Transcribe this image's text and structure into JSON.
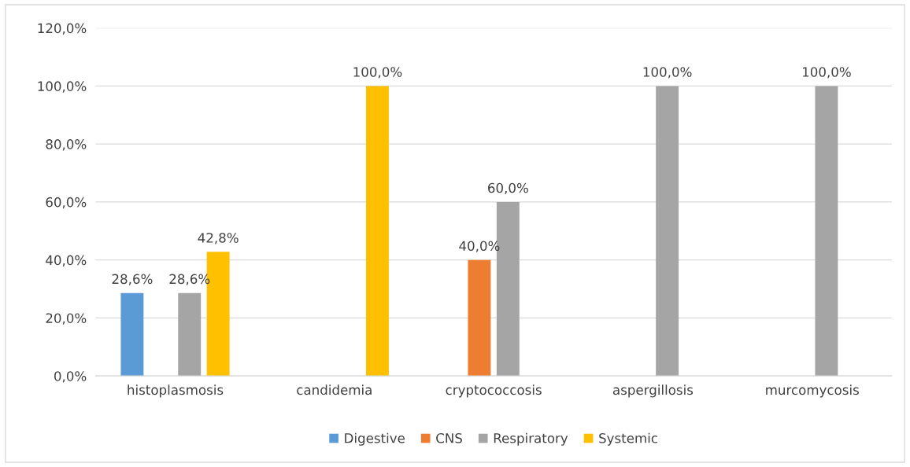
{
  "chart_data": {
    "type": "bar",
    "categories": [
      "histoplasmosis",
      "candidemia",
      "cryptococcosis",
      "aspergillosis",
      "murcomycosis"
    ],
    "series": [
      {
        "name": "Digestive",
        "color": "#5b9bd5",
        "values": [
          28.6,
          null,
          null,
          null,
          null
        ],
        "value_labels": [
          "28,6%",
          null,
          null,
          null,
          null
        ]
      },
      {
        "name": "CNS",
        "color": "#ed7d31",
        "values": [
          null,
          null,
          40.0,
          null,
          null
        ],
        "value_labels": [
          null,
          null,
          "40,0%",
          null,
          null
        ]
      },
      {
        "name": "Respiratory",
        "color": "#a5a5a5",
        "values": [
          28.6,
          null,
          60.0,
          100.0,
          100.0
        ],
        "value_labels": [
          "28,6%",
          null,
          "60,0%",
          "100,0%",
          "100,0%"
        ]
      },
      {
        "name": "Systemic",
        "color": "#ffc000",
        "values": [
          42.8,
          100.0,
          null,
          null,
          null
        ],
        "value_labels": [
          "42,8%",
          "100,0%",
          null,
          null,
          null
        ]
      }
    ],
    "ylim": [
      0,
      120
    ],
    "yticks": [
      {
        "value": 0,
        "label": "0,0%"
      },
      {
        "value": 20,
        "label": "20,0%"
      },
      {
        "value": 40,
        "label": "40,0%"
      },
      {
        "value": 60,
        "label": "60,0%"
      },
      {
        "value": 80,
        "label": "80,0%"
      },
      {
        "value": 100,
        "label": "100,0%"
      },
      {
        "value": 120,
        "label": "120,0%"
      }
    ],
    "grid": "y",
    "legend": "bottom"
  }
}
